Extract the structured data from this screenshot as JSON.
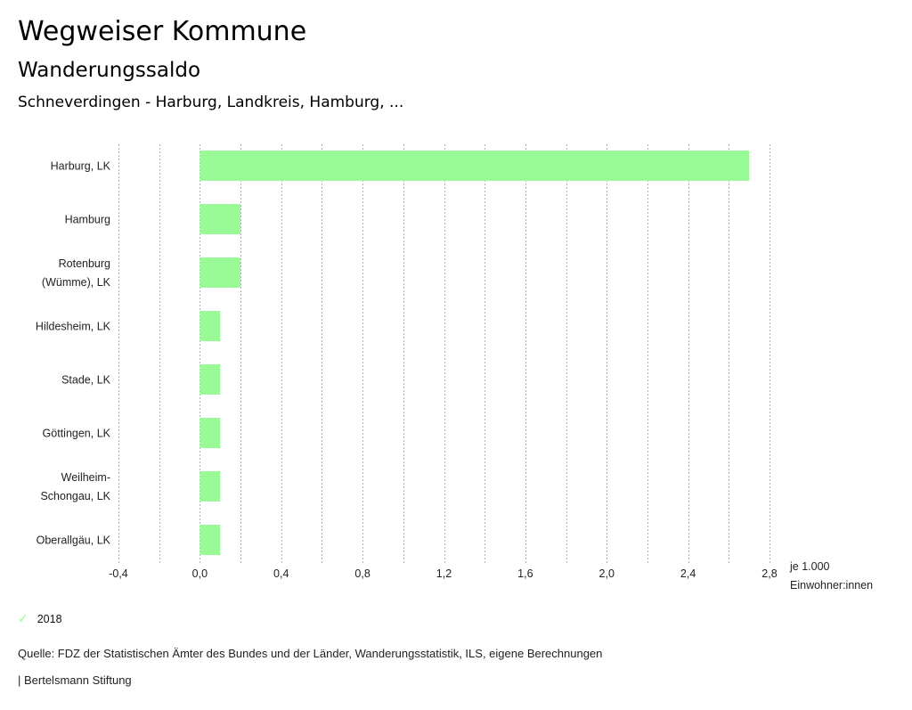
{
  "header": {
    "title": "Wegweiser Kommune",
    "subtitle": "Wanderungssaldo",
    "region": "Schneverdingen - Harburg, Landkreis, Hamburg, ..."
  },
  "chart_data": {
    "type": "bar",
    "orientation": "horizontal",
    "categories": [
      [
        "Harburg, LK"
      ],
      [
        "Hamburg"
      ],
      [
        "Rotenburg",
        "(Wümme), LK"
      ],
      [
        "Hildesheim, LK"
      ],
      [
        "Stade, LK"
      ],
      [
        "Göttingen, LK"
      ],
      [
        "Weilheim-",
        "Schongau, LK"
      ],
      [
        "Oberallgäu, LK"
      ]
    ],
    "series": [
      {
        "name": "2018",
        "values": [
          2.7,
          0.2,
          0.2,
          0.1,
          0.1,
          0.1,
          0.1,
          0.1
        ],
        "color": "#98fb98"
      }
    ],
    "xlim": [
      -0.4,
      2.8
    ],
    "xticks": [
      -0.4,
      0.0,
      0.4,
      0.8,
      1.2,
      1.6,
      2.0,
      2.4,
      2.8
    ],
    "xtick_labels": [
      "-0,4",
      "0,0",
      "0,4",
      "0,8",
      "1,2",
      "1,6",
      "2,0",
      "2,4",
      "2,8"
    ],
    "minor_grid_step": 0.2,
    "grid": true,
    "xlabel": [
      "je 1.000",
      "Einwohner:innen"
    ],
    "legend_position": "bottom-left"
  },
  "legend": {
    "label": "2018",
    "icon": "check-icon"
  },
  "footer": {
    "source": "Quelle: FDZ der Statistischen Ämter des Bundes und der Länder, Wanderungsstatistik, ILS, eigene Berechnungen",
    "credit": "| Bertelsmann Stiftung"
  }
}
